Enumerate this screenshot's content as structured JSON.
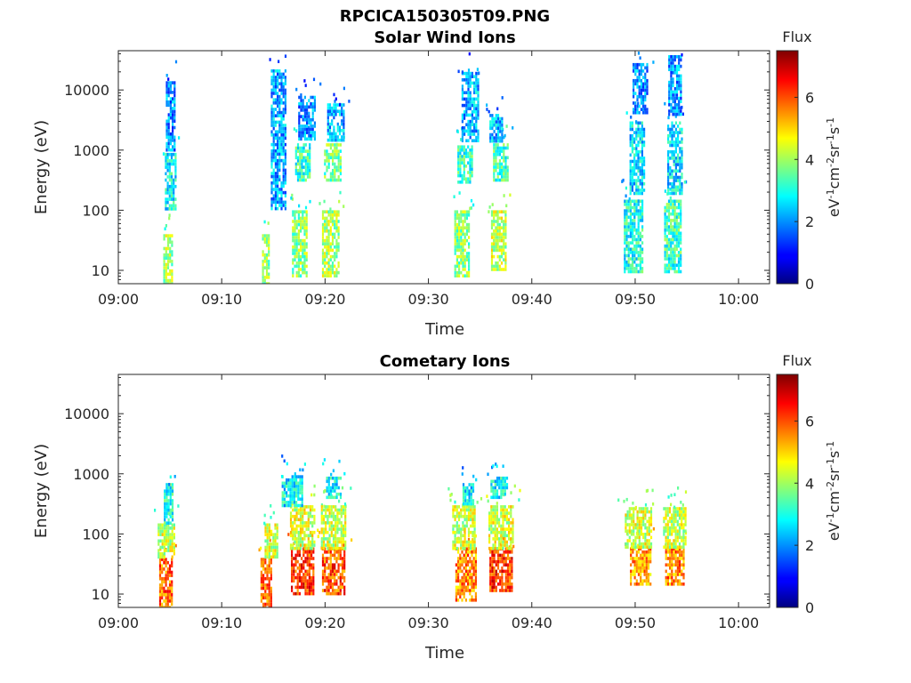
{
  "figure_title": "RPCICA150305T09.PNG",
  "chart_data": [
    {
      "type": "heatmap",
      "title": "Solar Wind Ions",
      "xlabel": "Time",
      "ylabel": "Energy (eV)",
      "x_ticks": [
        "09:00",
        "09:10",
        "09:20",
        "09:30",
        "09:40",
        "09:50",
        "10:00"
      ],
      "x_range_min": [
        0,
        63
      ],
      "y_scale": "log",
      "y_ticks": [
        "10",
        "100",
        "1000",
        "10000"
      ],
      "y_range": [
        6,
        45000
      ],
      "colorbar": {
        "title": "Flux",
        "label": "eV-1cm-2sr-1s-1",
        "ticks": [
          "0",
          "2",
          "4",
          "6"
        ],
        "range": [
          0,
          7.5
        ],
        "colormap": "jet"
      },
      "clusters": [
        {
          "t": 4.8,
          "w": 0.9,
          "e": [
            6,
            40
          ],
          "v": 4.0
        },
        {
          "t": 5.0,
          "w": 1.0,
          "e": [
            100,
            900
          ],
          "v": 2.8
        },
        {
          "t": 5.0,
          "w": 0.8,
          "e": [
            1000,
            14000
          ],
          "v": 2.0
        },
        {
          "t": 14.2,
          "w": 0.6,
          "e": [
            6,
            40
          ],
          "v": 3.8
        },
        {
          "t": 15.5,
          "w": 1.5,
          "e": [
            100,
            22000
          ],
          "v": 2.2
        },
        {
          "t": 17.5,
          "w": 1.4,
          "e": [
            8,
            100
          ],
          "v": 3.8
        },
        {
          "t": 17.8,
          "w": 1.4,
          "e": [
            300,
            1300
          ],
          "v": 3.2
        },
        {
          "t": 18.2,
          "w": 1.6,
          "e": [
            1500,
            8000
          ],
          "v": 2.0
        },
        {
          "t": 20.5,
          "w": 1.6,
          "e": [
            8,
            100
          ],
          "v": 4.0
        },
        {
          "t": 20.7,
          "w": 1.6,
          "e": [
            300,
            1300
          ],
          "v": 3.6
        },
        {
          "t": 21.0,
          "w": 1.6,
          "e": [
            1500,
            6000
          ],
          "v": 2.2
        },
        {
          "t": 33.2,
          "w": 1.4,
          "e": [
            8,
            100
          ],
          "v": 3.8
        },
        {
          "t": 33.5,
          "w": 1.4,
          "e": [
            300,
            1200
          ],
          "v": 3.2
        },
        {
          "t": 34.0,
          "w": 1.6,
          "e": [
            1500,
            20000
          ],
          "v": 2.2
        },
        {
          "t": 36.8,
          "w": 1.5,
          "e": [
            10,
            100
          ],
          "v": 4.2
        },
        {
          "t": 37.0,
          "w": 1.5,
          "e": [
            300,
            1300
          ],
          "v": 3.3
        },
        {
          "t": 36.5,
          "w": 1.2,
          "e": [
            1500,
            4000
          ],
          "v": 2.3
        },
        {
          "t": 49.8,
          "w": 1.8,
          "e": [
            10,
            150
          ],
          "v": 3.0
        },
        {
          "t": 50.2,
          "w": 1.5,
          "e": [
            200,
            3000
          ],
          "v": 2.6
        },
        {
          "t": 50.5,
          "w": 1.5,
          "e": [
            4000,
            28000
          ],
          "v": 2.0
        },
        {
          "t": 53.6,
          "w": 1.6,
          "e": [
            10,
            150
          ],
          "v": 3.2
        },
        {
          "t": 53.8,
          "w": 1.4,
          "e": [
            200,
            3000
          ],
          "v": 2.6
        },
        {
          "t": 53.8,
          "w": 1.2,
          "e": [
            4000,
            38000
          ],
          "v": 2.0
        }
      ]
    },
    {
      "type": "heatmap",
      "title": "Cometary Ions",
      "xlabel": "Time",
      "ylabel": "Energy (eV)",
      "x_ticks": [
        "09:00",
        "09:10",
        "09:20",
        "09:30",
        "09:40",
        "09:50",
        "10:00"
      ],
      "x_range_min": [
        0,
        63
      ],
      "y_scale": "log",
      "y_ticks": [
        "10",
        "100",
        "1000",
        "10000"
      ],
      "y_range": [
        6,
        45000
      ],
      "colorbar": {
        "title": "Flux",
        "label": "eV-1cm-2sr-1s-1",
        "ticks": [
          "0",
          "2",
          "4",
          "6"
        ],
        "range": [
          0,
          7.5
        ],
        "colormap": "jet"
      },
      "clusters": [
        {
          "t": 4.6,
          "w": 1.3,
          "e": [
            6,
            40
          ],
          "v": 5.8
        },
        {
          "t": 4.6,
          "w": 1.6,
          "e": [
            40,
            150
          ],
          "v": 4.3
        },
        {
          "t": 4.8,
          "w": 0.8,
          "e": [
            150,
            700
          ],
          "v": 3.0
        },
        {
          "t": 14.3,
          "w": 1.1,
          "e": [
            6,
            40
          ],
          "v": 5.8
        },
        {
          "t": 14.8,
          "w": 1.3,
          "e": [
            40,
            150
          ],
          "v": 4.3
        },
        {
          "t": 17.8,
          "w": 2.2,
          "e": [
            10,
            60
          ],
          "v": 6.2
        },
        {
          "t": 17.8,
          "w": 2.4,
          "e": [
            60,
            300
          ],
          "v": 4.4
        },
        {
          "t": 16.8,
          "w": 2.0,
          "e": [
            300,
            950
          ],
          "v": 2.7
        },
        {
          "t": 20.8,
          "w": 2.2,
          "e": [
            10,
            60
          ],
          "v": 6.0
        },
        {
          "t": 20.8,
          "w": 2.4,
          "e": [
            60,
            300
          ],
          "v": 4.3
        },
        {
          "t": 20.8,
          "w": 1.4,
          "e": [
            400,
            900
          ],
          "v": 2.8
        },
        {
          "t": 33.6,
          "w": 2.0,
          "e": [
            8,
            60
          ],
          "v": 5.6
        },
        {
          "t": 33.4,
          "w": 2.2,
          "e": [
            60,
            300
          ],
          "v": 4.3
        },
        {
          "t": 33.8,
          "w": 1.0,
          "e": [
            300,
            700
          ],
          "v": 2.7
        },
        {
          "t": 37.0,
          "w": 2.2,
          "e": [
            12,
            60
          ],
          "v": 6.2
        },
        {
          "t": 37.0,
          "w": 2.4,
          "e": [
            60,
            300
          ],
          "v": 4.4
        },
        {
          "t": 36.8,
          "w": 1.6,
          "e": [
            400,
            900
          ],
          "v": 2.8
        },
        {
          "t": 50.5,
          "w": 2.0,
          "e": [
            15,
            60
          ],
          "v": 5.4
        },
        {
          "t": 50.3,
          "w": 2.6,
          "e": [
            60,
            280
          ],
          "v": 4.3
        },
        {
          "t": 53.8,
          "w": 1.8,
          "e": [
            15,
            60
          ],
          "v": 5.6
        },
        {
          "t": 53.8,
          "w": 2.2,
          "e": [
            60,
            280
          ],
          "v": 4.3
        }
      ]
    }
  ]
}
